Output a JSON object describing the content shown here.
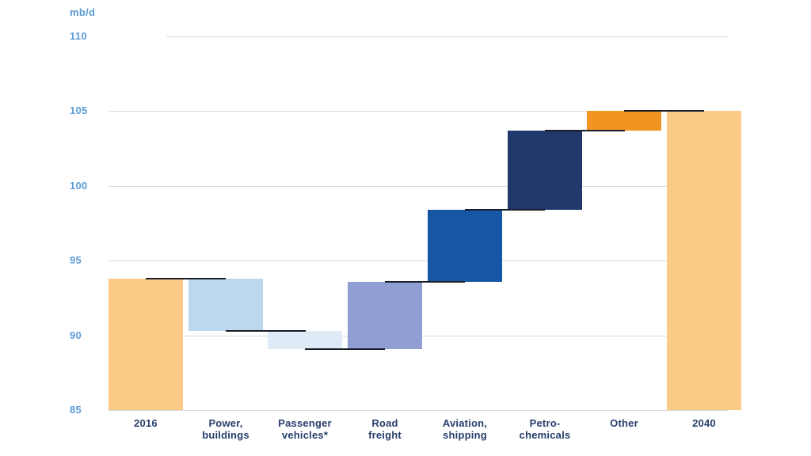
{
  "chart_data": {
    "type": "waterfall",
    "title": "",
    "unit_label": "mb/d",
    "y_axis": {
      "min": 85,
      "max": 110,
      "tick_step": 5,
      "ticks": [
        110,
        105,
        100,
        95,
        90,
        85
      ]
    },
    "legend": "none",
    "grid": "horizontal",
    "segments": [
      {
        "label_lines": [
          "2016"
        ],
        "role": "total",
        "start": 85,
        "end": 93.8,
        "change": 0,
        "color": "#fbca87"
      },
      {
        "label_lines": [
          "Power,",
          "buildings"
        ],
        "role": "decrease",
        "start": 93.8,
        "end": 90.3,
        "change": -3.5,
        "color": "#bdd7ef"
      },
      {
        "label_lines": [
          "Passenger",
          "vehicles*"
        ],
        "role": "decrease",
        "start": 90.3,
        "end": 89.1,
        "change": -1.2,
        "color": "#deebf7"
      },
      {
        "label_lines": [
          "Road",
          "freight"
        ],
        "role": "increase",
        "start": 89.1,
        "end": 93.6,
        "change": 4.5,
        "color": "#919ed3"
      },
      {
        "label_lines": [
          "Aviation,",
          "shipping"
        ],
        "role": "increase",
        "start": 93.6,
        "end": 98.4,
        "change": 4.8,
        "color": "#1656a5"
      },
      {
        "label_lines": [
          "Petro-",
          "chemicals"
        ],
        "role": "increase",
        "start": 98.4,
        "end": 103.7,
        "change": 5.3,
        "color": "#21386b"
      },
      {
        "label_lines": [
          "Other"
        ],
        "role": "increase",
        "start": 103.7,
        "end": 105,
        "change": 1.3,
        "color": "#f29422"
      },
      {
        "label_lines": [
          "2040"
        ],
        "role": "total",
        "start": 85,
        "end": 105,
        "change": 0,
        "color": "#fbca87"
      }
    ],
    "colors": {
      "gridline": "#dadada",
      "tick_label": "#5b9bd5",
      "category_label": "#263e6b",
      "connector_line": "#1a1e29"
    }
  }
}
